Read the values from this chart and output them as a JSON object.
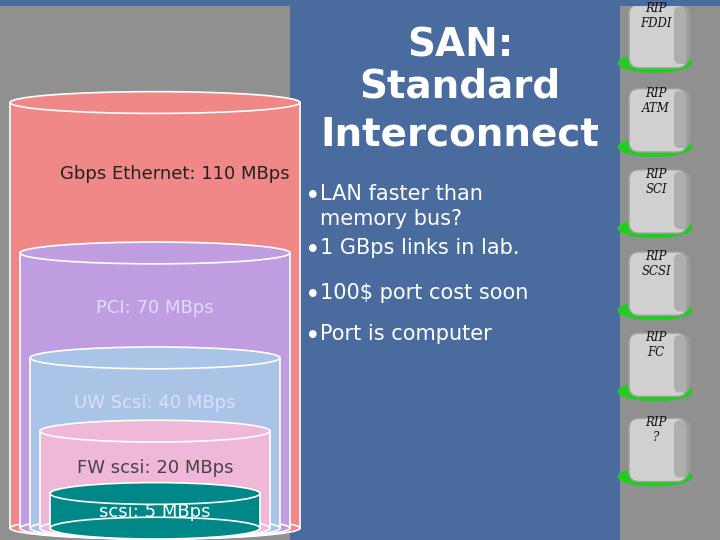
{
  "title_line1": "SAN:",
  "title_line2": "Standard",
  "title_line3": "Interconnect",
  "bg_color": "#4a6b9d",
  "left_bg_color": "#909090",
  "right_bg_color": "#909090",
  "bars": [
    {
      "label": "Gbps Ethernet: 110 MBps",
      "value": 110,
      "color": "#f08888",
      "text_color": "#222222",
      "label_align": "left"
    },
    {
      "label": "PCI: 70 MBps",
      "value": 70,
      "color": "#c09de0",
      "text_color": "#eeeeee",
      "label_align": "center"
    },
    {
      "label": "UW Scsi: 40 MBps",
      "value": 40,
      "color": "#aac4e8",
      "text_color": "#eeeeee",
      "label_align": "center"
    },
    {
      "label": "FW scsi: 20 MBps",
      "value": 20,
      "color": "#f0b8d8",
      "text_color": "#eeeeee",
      "label_align": "center"
    },
    {
      "label": "scsi: 5 MBps",
      "value": 5,
      "color": "#008888",
      "text_color": "white",
      "label_align": "center"
    }
  ],
  "bullets": [
    "LAN faster than\nmemory bus?",
    "1 GBps links in lab.",
    "100$ port cost soon",
    "Port is computer"
  ],
  "tombstones": [
    "RIP\nFDDI",
    "RIP\nATM",
    "RIP\nSCI",
    "RIP\nSCSI",
    "RIP\nFC",
    "RIP\n?"
  ],
  "title_fontsize": 28,
  "bullet_fontsize": 15,
  "bar_label_fontsize": 13
}
